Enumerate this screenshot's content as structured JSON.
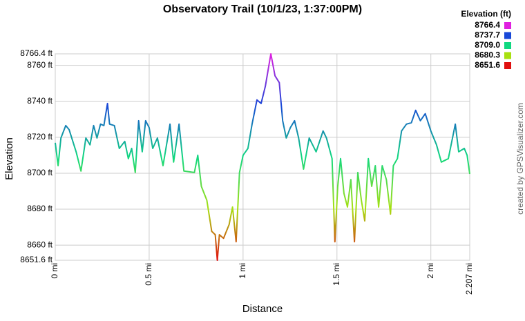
{
  "chart_data": {
    "type": "line",
    "title": "Observatory Trail (10/1/23, 1:37:00PM)",
    "x_label": "Distance",
    "y_label": "Elevation",
    "credit": "created by GPSVisualizer.com",
    "legend_title": "Elevation (ft)",
    "legend": [
      {
        "value": 8766.4,
        "color": "#e020e0"
      },
      {
        "value": 8737.7,
        "color": "#1848d8"
      },
      {
        "value": 8709,
        "label": "8709.0",
        "color": "#10d880"
      },
      {
        "value": 8680.3,
        "color": "#a8e010"
      },
      {
        "value": 8651.6,
        "color": "#e01010"
      }
    ],
    "grid": true,
    "xlim": [
      0,
      2.207
    ],
    "ylim": [
      8651.6,
      8766.4
    ],
    "xticks": [
      {
        "value": 0,
        "label": "0 mi"
      },
      {
        "value": 0.5,
        "label": "0.5 mi"
      },
      {
        "value": 1,
        "label": "1 mi"
      },
      {
        "value": 1.5,
        "label": "1.5 mi"
      },
      {
        "value": 2,
        "label": "2 mi"
      },
      {
        "value": 2.207,
        "label": "2.207 mi"
      }
    ],
    "yticks": [
      {
        "value": 8651.6,
        "label": "8651.6 ft"
      },
      {
        "value": 8660,
        "label": "8660 ft"
      },
      {
        "value": 8680,
        "label": "8680 ft"
      },
      {
        "value": 8700,
        "label": "8700 ft"
      },
      {
        "value": 8720,
        "label": "8720 ft"
      },
      {
        "value": 8740,
        "label": "8740 ft"
      },
      {
        "value": 8760,
        "label": "8760 ft"
      },
      {
        "value": 8766.4,
        "label": "8766.4 ft"
      }
    ],
    "x": [
      0,
      0.015,
      0.03,
      0.056,
      0.074,
      0.111,
      0.137,
      0.163,
      0.185,
      0.204,
      0.222,
      0.241,
      0.259,
      0.278,
      0.289,
      0.315,
      0.341,
      0.37,
      0.389,
      0.407,
      0.426,
      0.444,
      0.463,
      0.481,
      0.5,
      0.519,
      0.544,
      0.574,
      0.611,
      0.63,
      0.659,
      0.685,
      0.741,
      0.759,
      0.778,
      0.807,
      0.833,
      0.852,
      0.863,
      0.874,
      0.896,
      0.926,
      0.944,
      0.963,
      0.981,
      1.0,
      1.026,
      1.048,
      1.074,
      1.096,
      1.119,
      1.148,
      1.17,
      1.193,
      1.211,
      1.23,
      1.252,
      1.274,
      1.296,
      1.322,
      1.352,
      1.389,
      1.426,
      1.444,
      1.474,
      1.489,
      1.504,
      1.519,
      1.537,
      1.556,
      1.574,
      1.593,
      1.611,
      1.63,
      1.648,
      1.667,
      1.685,
      1.704,
      1.722,
      1.741,
      1.763,
      1.785,
      1.8,
      1.822,
      1.844,
      1.87,
      1.896,
      1.919,
      1.944,
      1.97,
      2.0,
      2.03,
      2.056,
      2.093,
      2.13,
      2.148,
      2.178,
      2.193,
      2.207
    ],
    "series": [
      {
        "values": [
          8716.9,
          8704.2,
          8719.6,
          8726.5,
          8724.2,
          8711.9,
          8701.2,
          8719.6,
          8715.8,
          8726.5,
          8719.6,
          8727.3,
          8726.5,
          8738.8,
          8727.3,
          8726.5,
          8713.8,
          8717.7,
          8708.1,
          8713.8,
          8700.4,
          8729.2,
          8711.9,
          8729.2,
          8725.4,
          8713.8,
          8719.6,
          8704.2,
          8727.3,
          8706.2,
          8727.3,
          8701.2,
          8700.4,
          8710.0,
          8692.7,
          8685.0,
          8667.7,
          8665.8,
          8651.6,
          8665.8,
          8663.8,
          8671.5,
          8681.2,
          8661.9,
          8700.4,
          8710.0,
          8713.8,
          8727.3,
          8740.8,
          8738.8,
          8748.5,
          8766.4,
          8754.2,
          8750.4,
          8729.2,
          8719.6,
          8725.4,
          8729.2,
          8719.6,
          8702.3,
          8719.6,
          8711.9,
          8723.5,
          8719.6,
          8708.1,
          8661.9,
          8692.7,
          8708.1,
          8688.8,
          8681.2,
          8696.5,
          8661.9,
          8700.4,
          8685.0,
          8673.5,
          8708.1,
          8692.7,
          8704.2,
          8681.2,
          8704.2,
          8696.5,
          8677.3,
          8704.2,
          8708.1,
          8723.5,
          8727.3,
          8728.1,
          8735.0,
          8729.2,
          8733.1,
          8723.5,
          8715.8,
          8706.2,
          8708.1,
          8727.3,
          8711.9,
          8713.8,
          8710.0,
          8699.6
        ]
      }
    ]
  }
}
